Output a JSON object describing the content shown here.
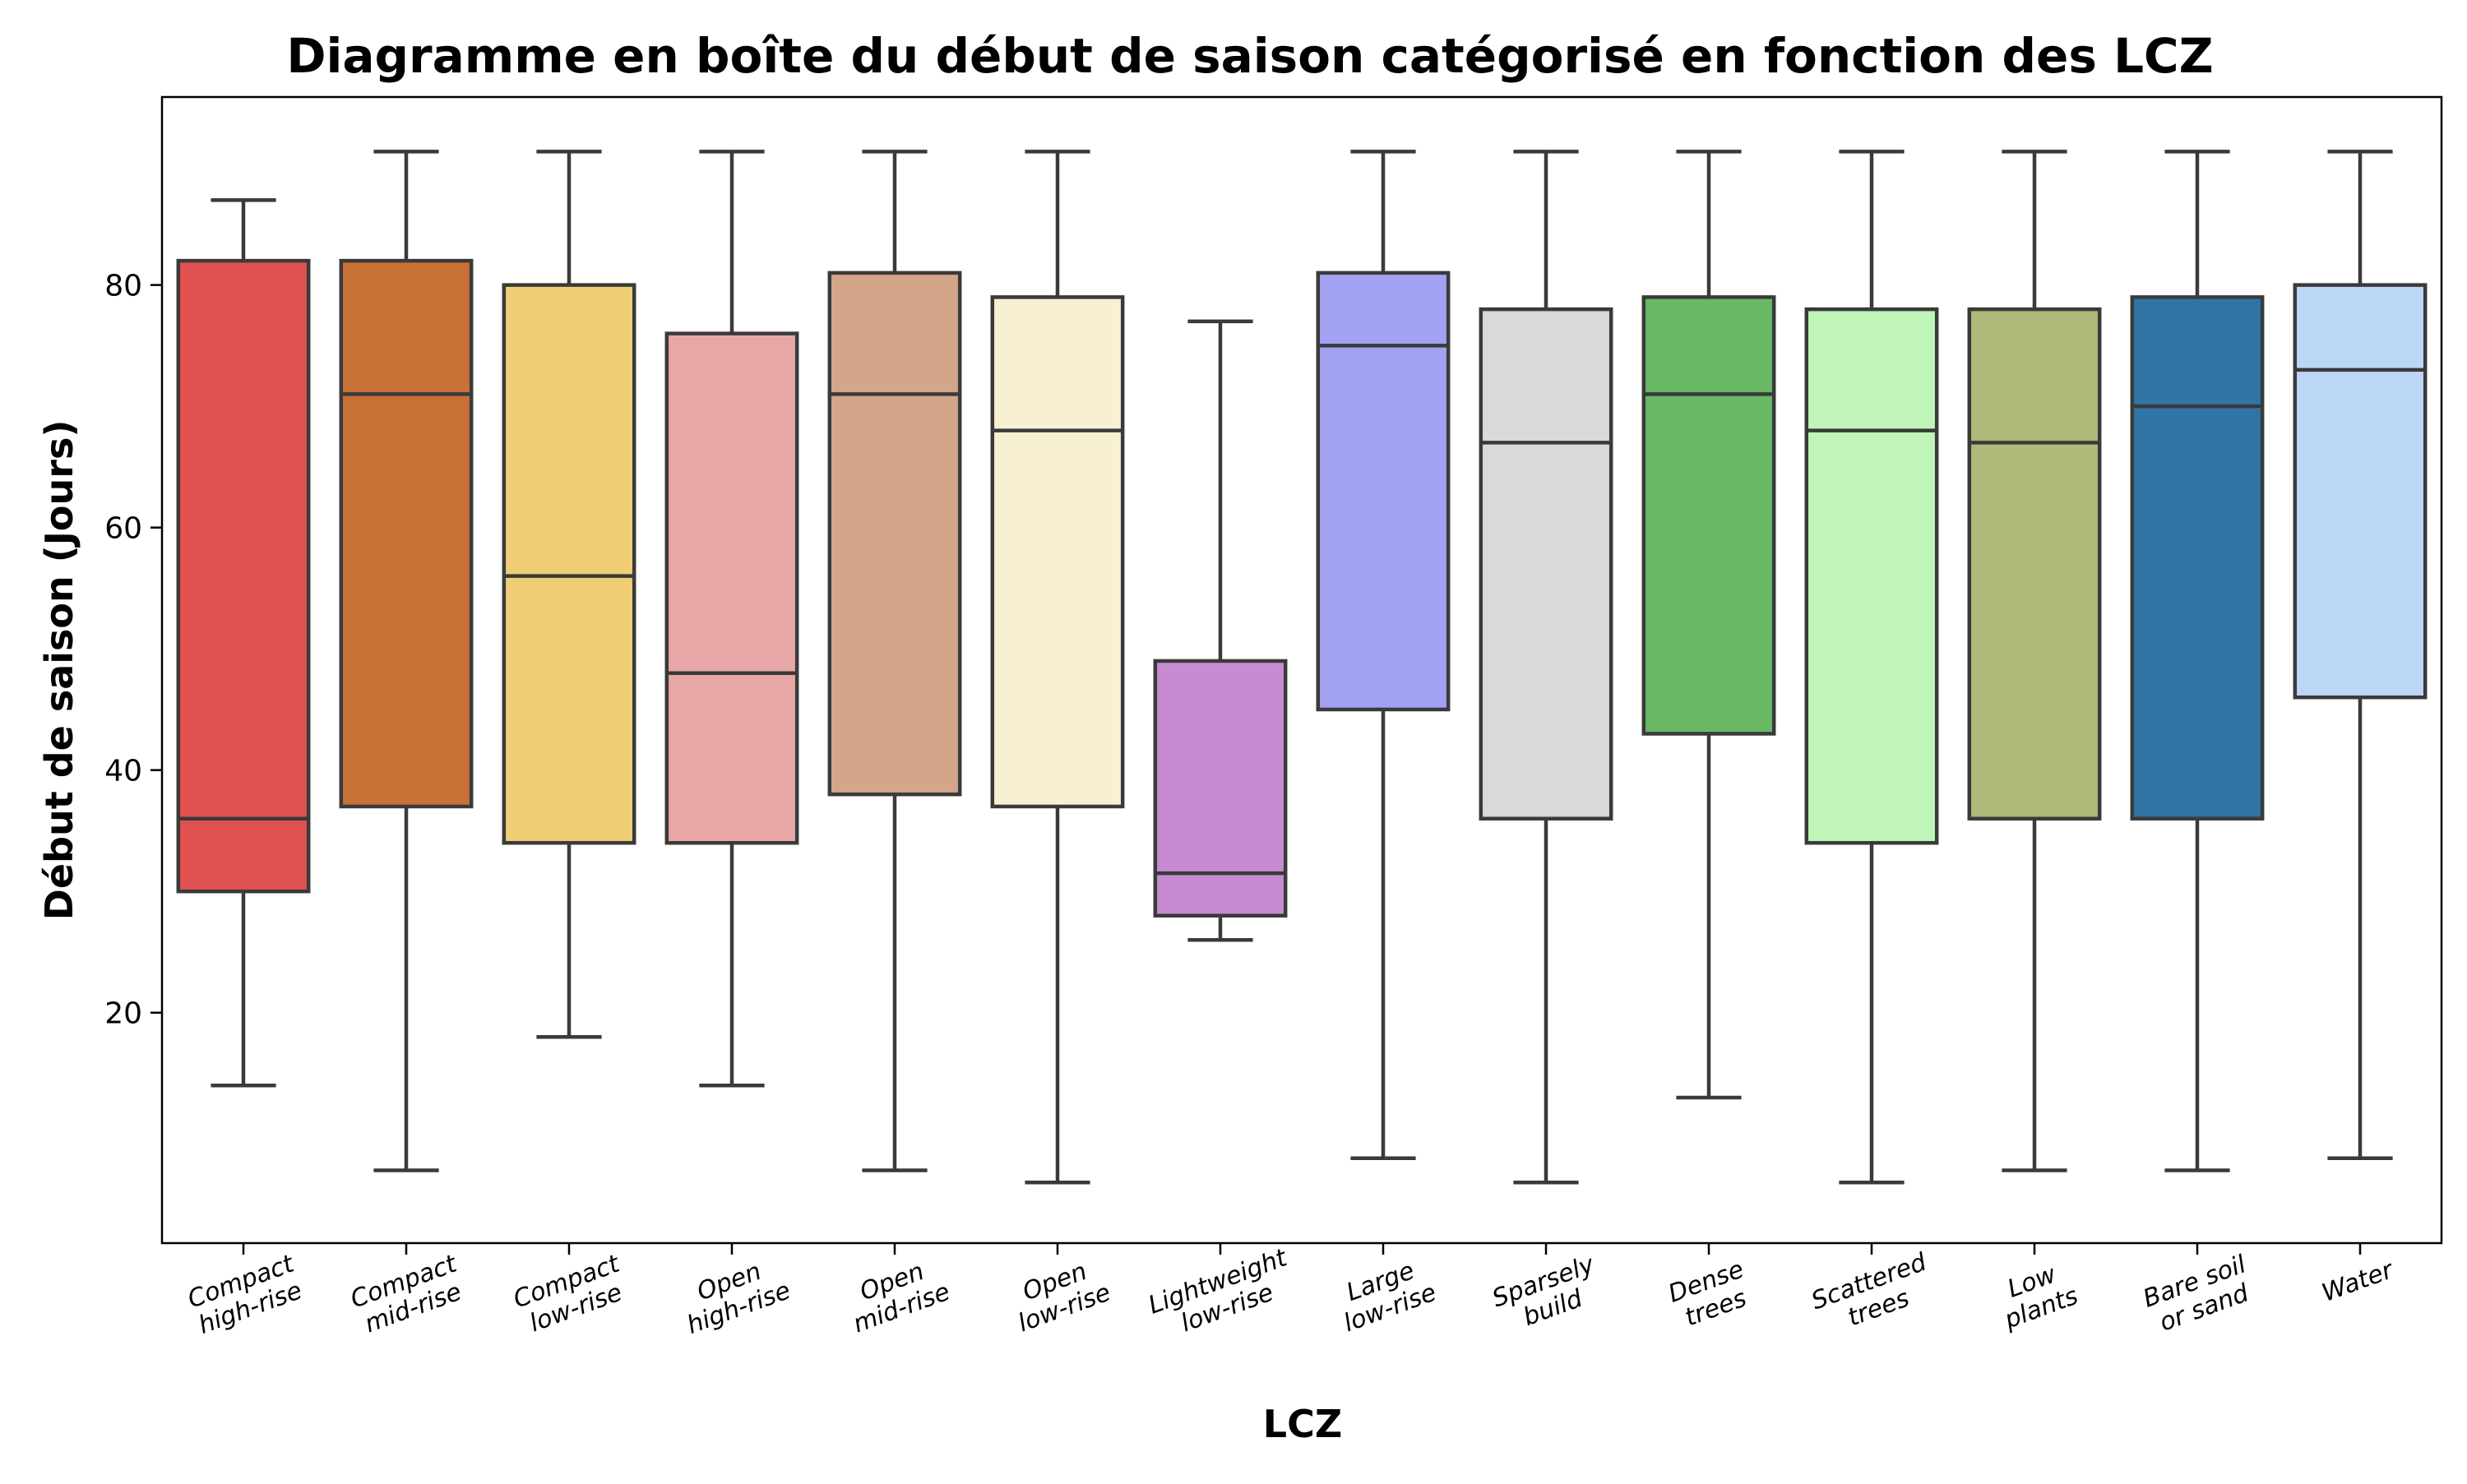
{
  "chart_data": {
    "type": "box",
    "title": "Diagramme en boîte du début de saison catégorisé en fonction des LCZ",
    "xlabel": "LCZ",
    "ylabel": "Début de saison (Jours)",
    "ylim": [
      1,
      95.5
    ],
    "yticks": [
      20,
      40,
      60,
      80
    ],
    "grid": false,
    "categories": [
      {
        "lines": [
          "Compact",
          "high-rise"
        ],
        "min": 14,
        "q1": 30,
        "median": 36,
        "q3": 82,
        "max": 87,
        "color": "#e05050"
      },
      {
        "lines": [
          "Compact",
          "mid-rise"
        ],
        "min": 7,
        "q1": 37,
        "median": 71,
        "q3": 82,
        "max": 91,
        "color": "#c87137"
      },
      {
        "lines": [
          "Compact",
          "low-rise"
        ],
        "min": 18,
        "q1": 34,
        "median": 56,
        "q3": 80,
        "max": 91,
        "color": "#eecd75"
      },
      {
        "lines": [
          "Open",
          "high-rise"
        ],
        "min": 14,
        "q1": 34,
        "median": 48,
        "q3": 76,
        "max": 91,
        "color": "#e8a7a7"
      },
      {
        "lines": [
          "Open",
          "mid-rise"
        ],
        "min": 7,
        "q1": 38,
        "median": 71,
        "q3": 81,
        "max": 91,
        "color": "#d4a689"
      },
      {
        "lines": [
          "Open",
          "low-rise"
        ],
        "min": 6,
        "q1": 37,
        "median": 68,
        "q3": 79,
        "max": 91,
        "color": "#f8f0d3"
      },
      {
        "lines": [
          "Lightweight",
          "low-rise"
        ],
        "min": 26,
        "q1": 28,
        "median": 31.5,
        "q3": 49,
        "max": 77,
        "color": "#c68bd2"
      },
      {
        "lines": [
          "Large",
          "low-rise"
        ],
        "min": 8,
        "q1": 45,
        "median": 75,
        "q3": 81,
        "max": 91,
        "color": "#a2a2f2"
      },
      {
        "lines": [
          "Sparsely",
          "build"
        ],
        "min": 6,
        "q1": 36,
        "median": 67,
        "q3": 78,
        "max": 91,
        "color": "#d9d9d9"
      },
      {
        "lines": [
          "Dense",
          "trees"
        ],
        "min": 13,
        "q1": 43,
        "median": 71,
        "q3": 79,
        "max": 91,
        "color": "#68b866"
      },
      {
        "lines": [
          "Scattered",
          "trees"
        ],
        "min": 6,
        "q1": 34,
        "median": 68,
        "q3": 78,
        "max": 91,
        "color": "#bff5b9"
      },
      {
        "lines": [
          "Low",
          "plants"
        ],
        "min": 7,
        "q1": 36,
        "median": 67,
        "q3": 78,
        "max": 91,
        "color": "#afba7a"
      },
      {
        "lines": [
          "Bare soil",
          "or sand"
        ],
        "min": 7,
        "q1": 36,
        "median": 70,
        "q3": 79,
        "max": 91,
        "color": "#2f74a4"
      },
      {
        "lines": [
          "Water"
        ],
        "min": 8,
        "q1": 46,
        "median": 73,
        "q3": 80,
        "max": 91,
        "color": "#bcd7f6"
      }
    ]
  }
}
